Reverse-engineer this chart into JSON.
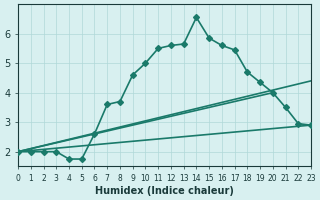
{
  "xlabel": "Humidex (Indice chaleur)",
  "ylabel": "",
  "bg_color": "#d8f0f0",
  "grid_color": "#b0d8d8",
  "line_color": "#1a7a6a",
  "xlim": [
    0,
    23
  ],
  "ylim": [
    1.5,
    7
  ],
  "xticks": [
    0,
    1,
    2,
    3,
    4,
    5,
    6,
    7,
    8,
    9,
    10,
    11,
    12,
    13,
    14,
    15,
    16,
    17,
    18,
    19,
    20,
    21,
    22,
    23
  ],
  "yticks": [
    2,
    3,
    4,
    5,
    6
  ],
  "main_x": [
    0,
    1,
    2,
    3,
    4,
    5,
    6,
    7,
    8,
    9,
    10,
    11,
    12,
    13,
    14,
    15,
    16,
    17,
    18,
    19,
    20,
    21,
    22,
    23
  ],
  "main_y": [
    2.0,
    2.0,
    2.0,
    2.0,
    1.75,
    1.75,
    2.6,
    3.6,
    3.7,
    4.6,
    5.0,
    5.5,
    5.6,
    5.65,
    6.55,
    5.85,
    5.6,
    5.45,
    4.7,
    4.35,
    4.0,
    3.5,
    2.95,
    2.9
  ],
  "line1_x": [
    0,
    23
  ],
  "line1_y": [
    2.0,
    4.4
  ],
  "line2_x": [
    0,
    20
  ],
  "line2_y": [
    2.0,
    4.0
  ],
  "line3_x": [
    0,
    23
  ],
  "line3_y": [
    2.0,
    2.9
  ],
  "marker": "D",
  "markersize": 3,
  "linewidth": 1.2
}
